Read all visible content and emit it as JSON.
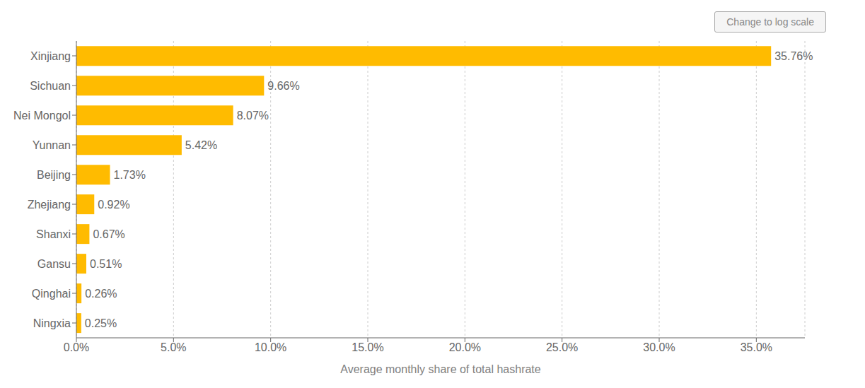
{
  "chart_data": {
    "type": "bar",
    "orientation": "horizontal",
    "categories": [
      "Ningxia",
      "Qinghai",
      "Gansu",
      "Shanxi",
      "Zhejiang",
      "Beijing",
      "Yunnan",
      "Nei Mongol",
      "Sichuan",
      "Xinjiang"
    ],
    "values": [
      0.25,
      0.26,
      0.51,
      0.67,
      0.92,
      1.73,
      5.42,
      8.07,
      9.66,
      35.76
    ],
    "value_labels": [
      "0.25%",
      "0.26%",
      "0.51%",
      "0.67%",
      "0.92%",
      "1.73%",
      "5.42%",
      "8.07%",
      "9.66%",
      "35.76%"
    ],
    "data_labels": true,
    "color": "#FFBB00",
    "xlabel": "Average monthly share of total hashrate",
    "xlim": [
      0,
      37.5
    ],
    "xticks": [
      {
        "value": 0,
        "label": "0.0%"
      },
      {
        "value": 5,
        "label": "5.0%"
      },
      {
        "value": 10,
        "label": "10.0%"
      },
      {
        "value": 15,
        "label": "15.0%"
      },
      {
        "value": 20,
        "label": "20.0%"
      },
      {
        "value": 25,
        "label": "25.0%"
      },
      {
        "value": 30,
        "label": "30.0%"
      },
      {
        "value": 35,
        "label": "35.0%"
      }
    ],
    "grid": true,
    "annotations": [
      "Change to log scale"
    ]
  }
}
